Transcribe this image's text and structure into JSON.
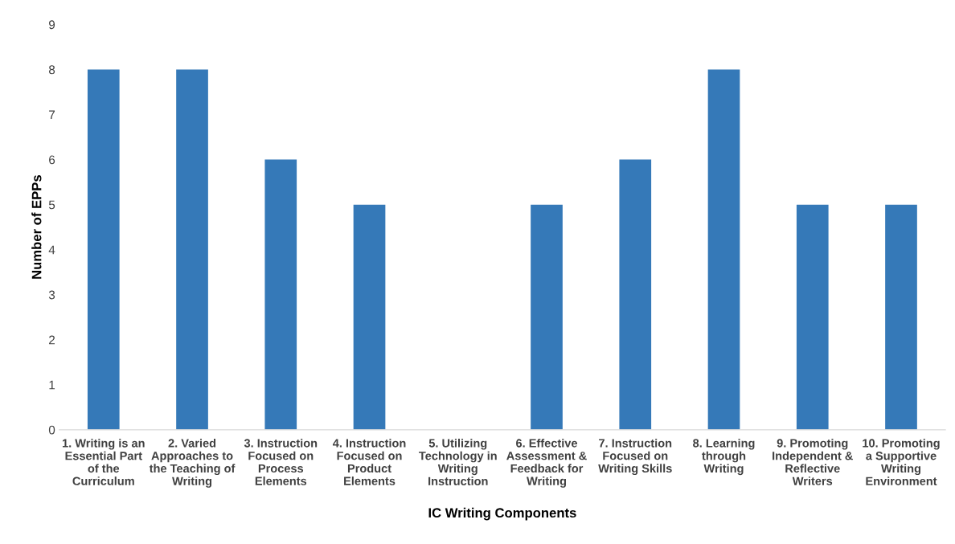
{
  "chart_data": {
    "type": "bar",
    "categories": [
      "1. Writing is an\nEssential Part\nof the\nCurriculum",
      "2. Varied\nApproaches to\nthe Teaching of\nWriting",
      "3. Instruction\nFocused on\nProcess\nElements",
      "4. Instruction\nFocused on\nProduct\nElements",
      "5. Utilizing\nTechnology in\nWriting\nInstruction",
      "6. Effective\nAssessment &\nFeedback for\nWriting",
      "7. Instruction\nFocused on\nWriting Skills",
      "8. Learning\nthrough\nWriting",
      "9. Promoting\nIndependent &\nReflective\nWriters",
      "10. Promoting\na Supportive\nWriting\nEnvironment"
    ],
    "values": [
      8,
      8,
      6,
      5,
      0,
      5,
      6,
      8,
      5,
      5
    ],
    "color": "#3579b8",
    "xlabel": "IC Writing Components",
    "ylabel": "Number of EPPs",
    "ylim": [
      0,
      9
    ],
    "yticks": [
      0,
      1,
      2,
      3,
      4,
      5,
      6,
      7,
      8,
      9
    ],
    "grid": false,
    "legend": false
  }
}
